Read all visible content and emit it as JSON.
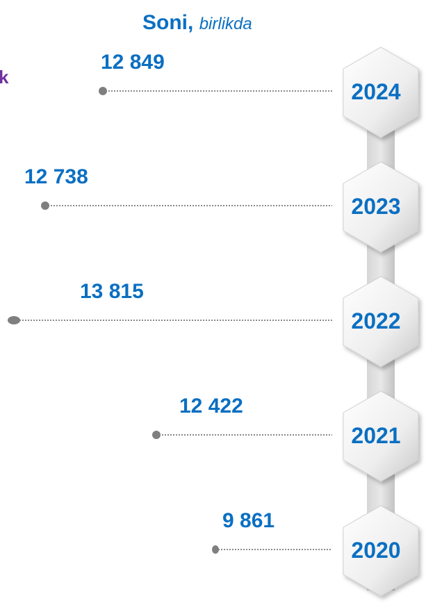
{
  "header": {
    "title": "Soni,",
    "subtitle": "birlikda",
    "side_label": "k"
  },
  "items": [
    {
      "year": "2024",
      "value": "12 849"
    },
    {
      "year": "2023",
      "value": "12 738"
    },
    {
      "year": "2022",
      "value": "13 815"
    },
    {
      "year": "2021",
      "value": "12 422"
    },
    {
      "year": "2020",
      "value": "9 861"
    }
  ]
}
